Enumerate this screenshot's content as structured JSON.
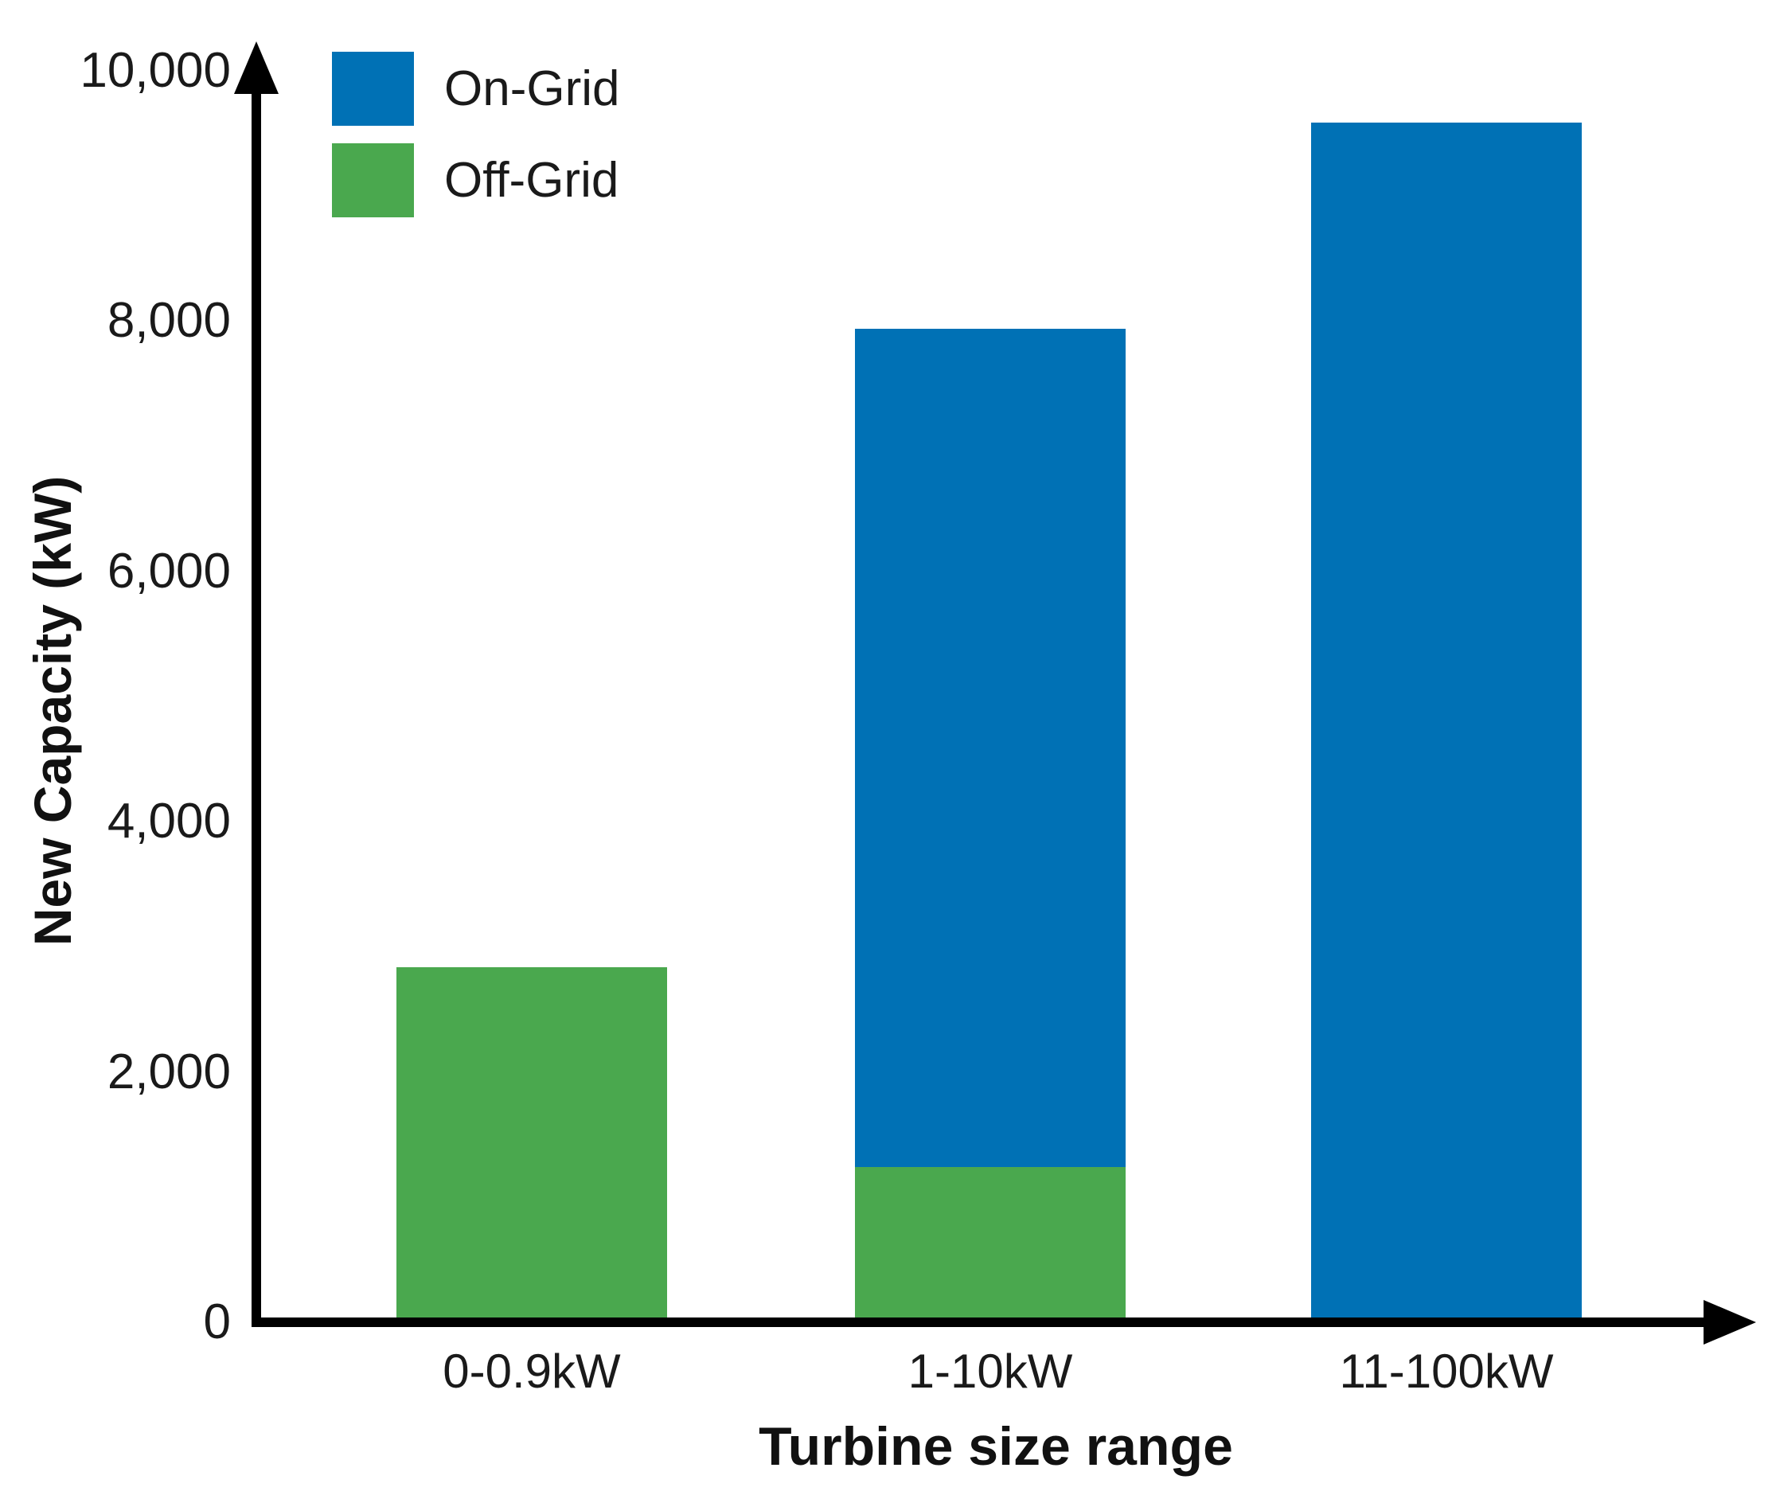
{
  "chart_data": {
    "type": "bar",
    "stacked": true,
    "title": "",
    "xlabel": "Turbine size range",
    "ylabel": "New Capacity (kW)",
    "categories": [
      "0-0.9kW",
      "1-10kW",
      "11-100kW"
    ],
    "series": [
      {
        "name": "On-Grid",
        "color": "#0071b5",
        "values": [
          0,
          6700,
          9550
        ]
      },
      {
        "name": "Off-Grid",
        "color": "#4aa84e",
        "values": [
          2800,
          1200,
          0
        ]
      }
    ],
    "totals": [
      2800,
      7900,
      9550
    ],
    "ylim": [
      0,
      10000
    ],
    "yticks": {
      "values": [
        0,
        2000,
        4000,
        6000,
        8000,
        10000
      ],
      "labels": [
        "0",
        "2,000",
        "4,000",
        "6,000",
        "8,000",
        "10,000"
      ]
    },
    "legend": {
      "position": "top-left",
      "entries": [
        "On-Grid",
        "Off-Grid"
      ]
    },
    "grid": false,
    "axis_color": "#000000",
    "text_color": "#1a1a1a"
  }
}
